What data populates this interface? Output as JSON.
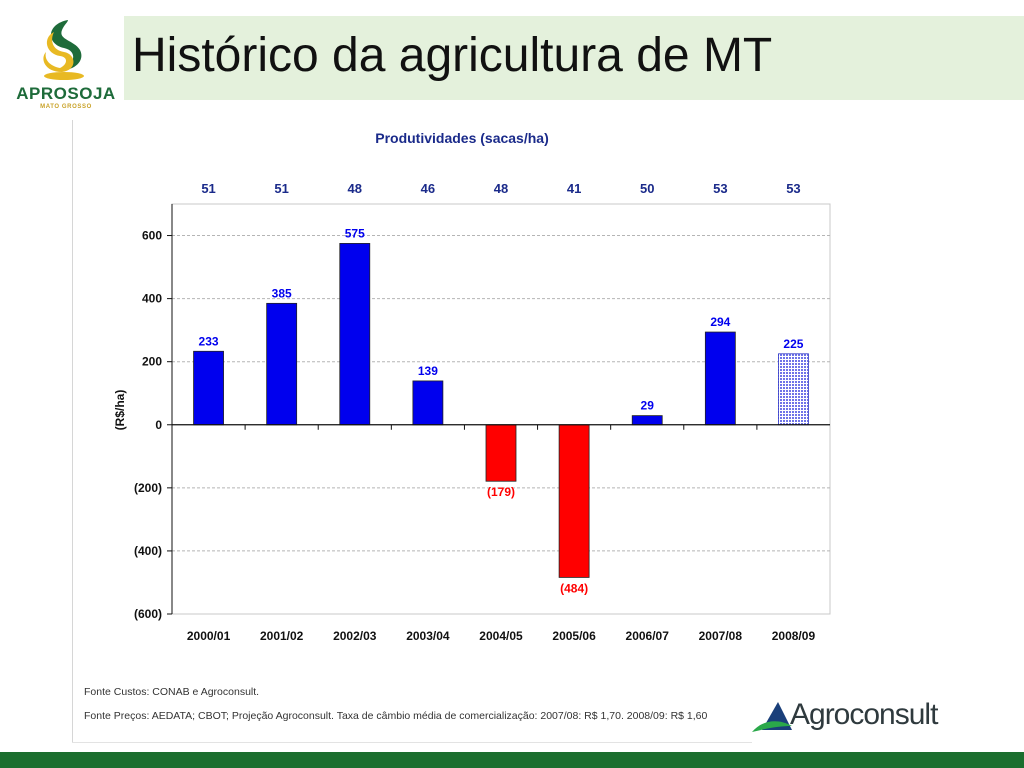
{
  "header": {
    "title": "Histórico da agricultura de MT",
    "logo_name": "APROSOJA",
    "logo_sub": "MATO GROSSO"
  },
  "chart_data": {
    "type": "bar",
    "title": "Produtividades (sacas/ha)",
    "ylabel": "(R$/ha)",
    "xlabel": "",
    "categories": [
      "2000/01",
      "2001/02",
      "2002/03",
      "2003/04",
      "2004/05",
      "2005/06",
      "2006/07",
      "2007/08",
      "2008/09"
    ],
    "values": [
      233,
      385,
      575,
      139,
      -179,
      -484,
      29,
      294,
      225
    ],
    "value_labels": [
      "233",
      "385",
      "575",
      "139",
      "(179)",
      "(484)",
      "29",
      "294",
      "225"
    ],
    "productivity": [
      "51",
      "51",
      "48",
      "46",
      "48",
      "41",
      "50",
      "53",
      "53"
    ],
    "ylim": [
      -600,
      700
    ],
    "yticks": [
      -600,
      -400,
      -200,
      0,
      200,
      400,
      600
    ],
    "ytick_labels": [
      "(600)",
      "(400)",
      "(200)",
      "0",
      "200",
      "400",
      "600"
    ],
    "grid": true,
    "colors": {
      "positive": "#0000ee",
      "negative": "#ff0000",
      "projected": "#6f74e8"
    },
    "projected_index": 8
  },
  "footer": {
    "source_costs": "Fonte Custos: CONAB e Agroconsult.",
    "source_prices": "Fonte Preços: AEDATA; CBOT; Projeção Agroconsult. Taxa de câmbio média de comercialização: 2007/08: R$ 1,70. 2008/09: R$ 1,60",
    "brand": "Agroconsult"
  }
}
